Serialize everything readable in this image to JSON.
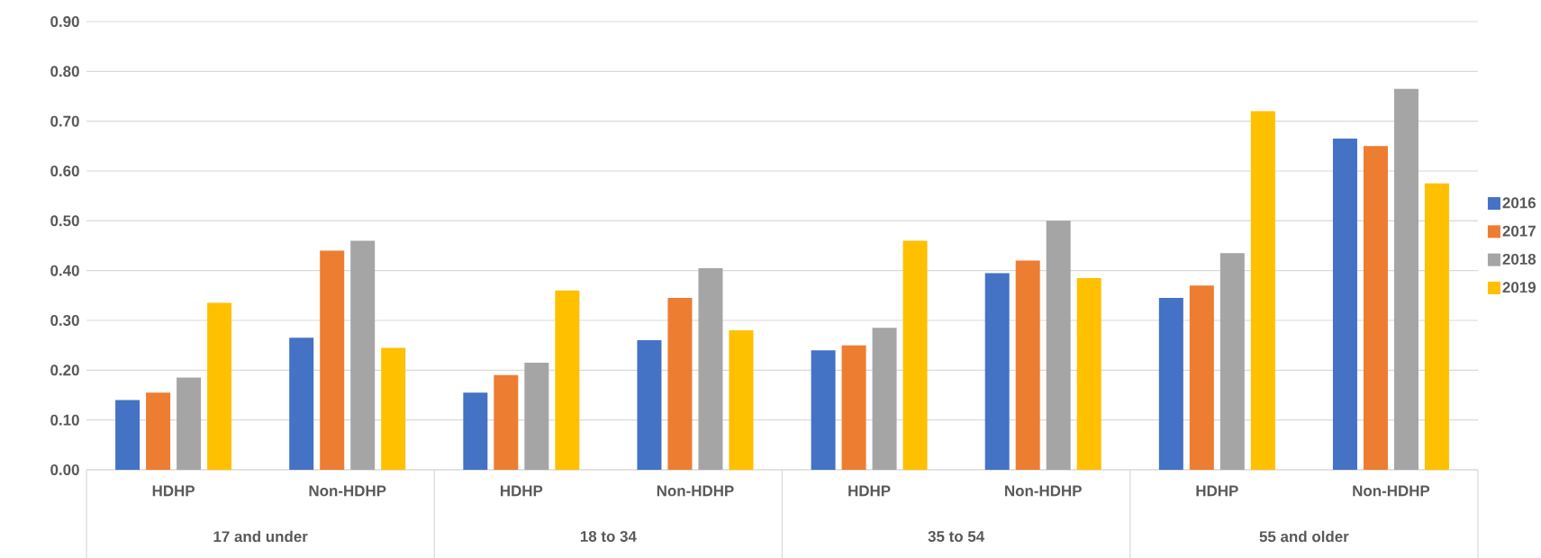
{
  "chart_data": {
    "type": "bar",
    "categories": [
      "HDHP",
      "Non-HDHP",
      "HDHP",
      "Non-HDHP",
      "HDHP",
      "Non-HDHP",
      "HDHP",
      "Non-HDHP"
    ],
    "series": [
      {
        "name": "2016",
        "color": "#4472c4",
        "values": [
          0.14,
          0.265,
          0.155,
          0.26,
          0.24,
          0.395,
          0.345,
          0.665
        ]
      },
      {
        "name": "2017",
        "color": "#ed7d31",
        "values": [
          0.155,
          0.44,
          0.19,
          0.345,
          0.25,
          0.42,
          0.37,
          0.65
        ]
      },
      {
        "name": "2018",
        "color": "#a5a5a5",
        "values": [
          0.185,
          0.46,
          0.215,
          0.405,
          0.285,
          0.5,
          0.435,
          0.765
        ]
      },
      {
        "name": "2019",
        "color": "#ffc000",
        "values": [
          0.335,
          0.245,
          0.36,
          0.28,
          0.46,
          0.385,
          0.72,
          0.575
        ]
      }
    ],
    "annotations": [
      "17 and under",
      "18 to 34",
      "35 to 54",
      "55 and older"
    ],
    "ylim": [
      0,
      0.9
    ],
    "yticks": [
      {
        "value": 0,
        "label": "0.00"
      },
      {
        "value": 0.1,
        "label": "0.10"
      },
      {
        "value": 0.2,
        "label": "0.20"
      },
      {
        "value": 0.3,
        "label": "0.30"
      },
      {
        "value": 0.4,
        "label": "0.40"
      },
      {
        "value": 0.5,
        "label": "0.50"
      },
      {
        "value": 0.6,
        "label": "0.60"
      },
      {
        "value": 0.7,
        "label": "0.70"
      },
      {
        "value": 0.8,
        "label": "0.80"
      },
      {
        "value": 0.9,
        "label": "0.90"
      }
    ],
    "grid": "y",
    "legend": "right"
  }
}
